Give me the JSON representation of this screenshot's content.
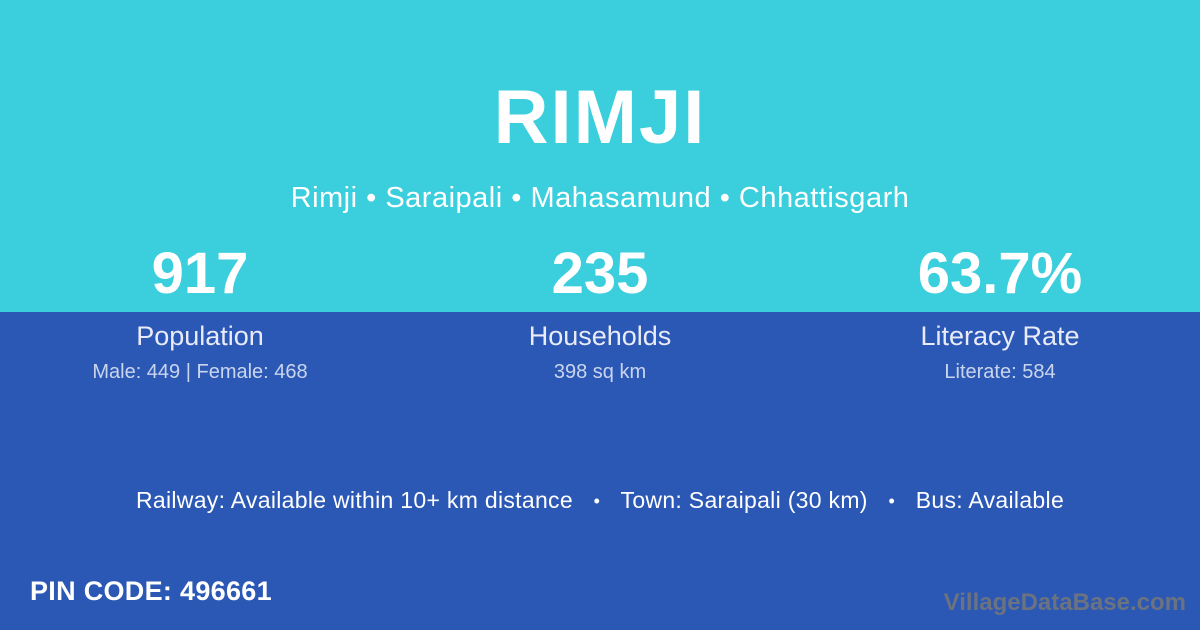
{
  "header": {
    "title": "RIMJI",
    "breadcrumb": "Rimji • Saraipali • Mahasamund • Chhattisgarh"
  },
  "stats": [
    {
      "value": "917",
      "label": "Population",
      "detail": "Male: 449 | Female: 468"
    },
    {
      "value": "235",
      "label": "Households",
      "detail": "398 sq km"
    },
    {
      "value": "63.7%",
      "label": "Literacy Rate",
      "detail": "Literate: 584"
    }
  ],
  "transport": {
    "railway": "Railway: Available within 10+ km distance",
    "town": "Town: Saraipali (30 km)",
    "bus": "Bus: Available",
    "separator": "•"
  },
  "footer": {
    "pin_label": "PIN CODE:",
    "pin_value": "496661",
    "watermark": "VillageDataBase.com"
  },
  "colors": {
    "top_background": "#3bcedd",
    "bottom_background": "#2b57b5",
    "text": "#ffffff",
    "label_text": "#e9ecf8",
    "watermark_text": "#6b7280"
  }
}
